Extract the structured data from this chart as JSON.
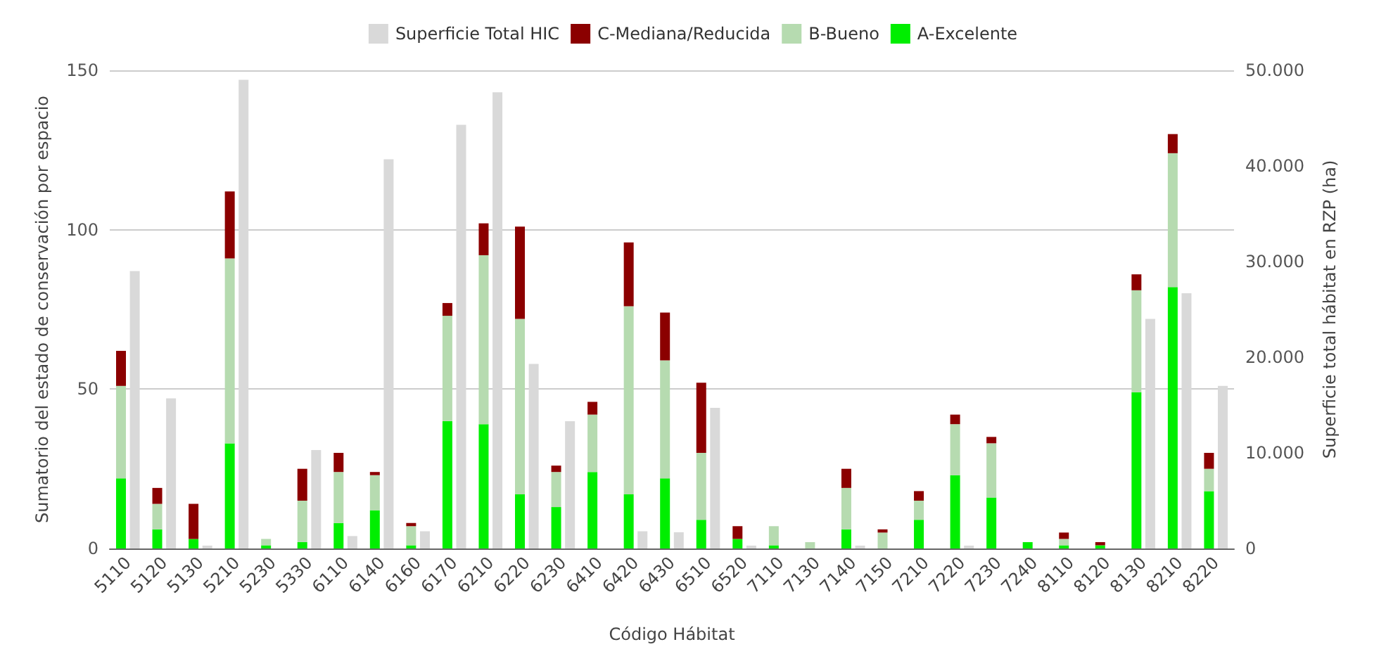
{
  "chart_data": {
    "type": "bar",
    "stacked": true,
    "xlabel": "Código Hábitat",
    "ylabel": "Sumatorio del estado de conservación por espacio",
    "y2label": "Superficie total hábitat en RZP (ha)",
    "categories": [
      "5110",
      "5120",
      "5130",
      "5210",
      "5230",
      "5330",
      "6110",
      "6140",
      "6160",
      "6170",
      "6210",
      "6220",
      "6230",
      "6410",
      "6420",
      "6430",
      "6510",
      "6520",
      "7110",
      "7130",
      "7140",
      "7150",
      "7210",
      "7220",
      "7230",
      "7240",
      "8110",
      "8120",
      "8130",
      "8210",
      "8220"
    ],
    "series": [
      {
        "name": "A-Excelente",
        "color": "#00ee00",
        "values": [
          22,
          6,
          3,
          33,
          1,
          2,
          8,
          12,
          1,
          40,
          39,
          17,
          13,
          24,
          17,
          22,
          9,
          3,
          1,
          0,
          6,
          0,
          9,
          23,
          16,
          2,
          1,
          1,
          49,
          82,
          18
        ]
      },
      {
        "name": "B-Bueno",
        "color": "#b6dbb0",
        "values": [
          29,
          8,
          0,
          58,
          2,
          13,
          16,
          11,
          6,
          33,
          53,
          55,
          11,
          18,
          59,
          37,
          21,
          0,
          6,
          2,
          13,
          5,
          6,
          16,
          17,
          0,
          2,
          0,
          32,
          42,
          7
        ]
      },
      {
        "name": "C-Mediana/Reducida",
        "color": "#8b0000",
        "values": [
          11,
          5,
          11,
          21,
          0,
          10,
          6,
          1,
          1,
          4,
          10,
          29,
          2,
          4,
          20,
          15,
          22,
          4,
          0,
          0,
          6,
          1,
          3,
          3,
          2,
          0,
          2,
          1,
          5,
          6,
          5
        ]
      },
      {
        "name": "Superficie Total HIC",
        "color": "#d9d9d9",
        "axis": "y2",
        "values": [
          29000,
          15700,
          300,
          49000,
          null,
          10300,
          1300,
          40700,
          1800,
          44300,
          47700,
          19300,
          13300,
          null,
          1800,
          1700,
          14700,
          300,
          0,
          0,
          300,
          0,
          null,
          300,
          null,
          0,
          0,
          0,
          24000,
          26700,
          17000
        ]
      }
    ],
    "ylim": [
      0,
      150
    ],
    "yticks": [
      0,
      50,
      100,
      150
    ],
    "y2lim": [
      0,
      50000
    ],
    "y2ticks": [
      {
        "value": 0,
        "label": "0"
      },
      {
        "value": 10000,
        "label": "10.000"
      },
      {
        "value": 20000,
        "label": "20.000"
      },
      {
        "value": 30000,
        "label": "30.000"
      },
      {
        "value": 40000,
        "label": "40.000"
      },
      {
        "value": 50000,
        "label": "50.000"
      }
    ],
    "grid": "y",
    "legend": "top"
  }
}
